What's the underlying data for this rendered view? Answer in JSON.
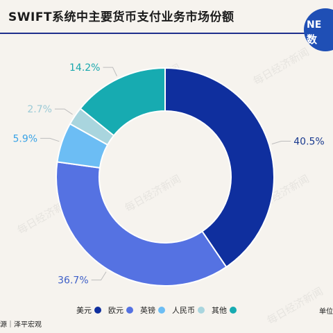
{
  "header": {
    "title": "SWIFT系统中主要货币支付业务市场份额",
    "logo_top": "NE",
    "logo_bottom": "数"
  },
  "watermark": "每日经济新闻",
  "footer": {
    "unit": "单位",
    "source": "源｜泽平宏观"
  },
  "chart_data": {
    "type": "pie",
    "donut": true,
    "title": "SWIFT系统中主要货币支付业务市场份额",
    "categories": [
      "美元",
      "欧元",
      "英镑",
      "人民币",
      "其他"
    ],
    "values": [
      40.5,
      36.7,
      5.9,
      2.7,
      14.2
    ],
    "value_labels": [
      "40.5%",
      "36.7%",
      "5.9%",
      "2.7%",
      "14.2%"
    ],
    "colors": [
      "#0f2f9e",
      "#5572e2",
      "#6cbdf4",
      "#a9d5de",
      "#17abb1"
    ],
    "label_colors": [
      "#1a3a8f",
      "#3e5fc7",
      "#3aa3e6",
      "#9bcad6",
      "#17a7ad"
    ],
    "legend_position": "bottom"
  }
}
